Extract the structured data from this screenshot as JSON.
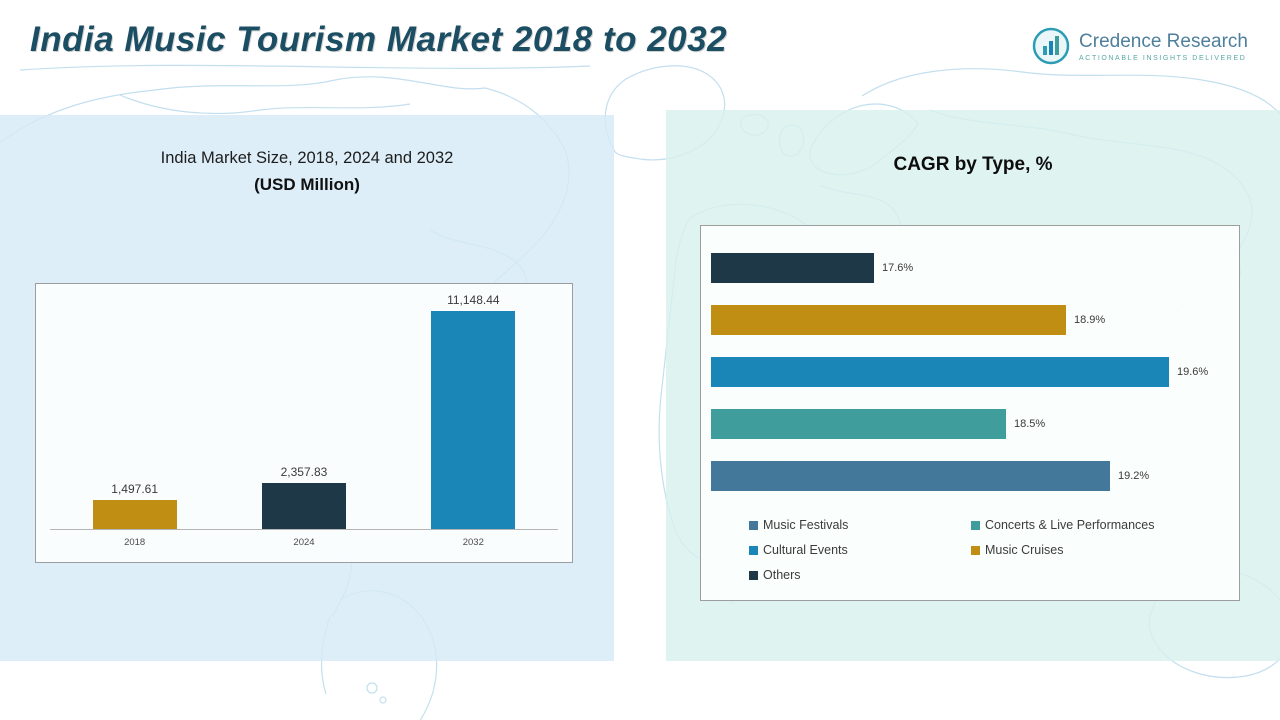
{
  "header": {
    "title": "India Music Tourism Market 2018 to 2032",
    "logo": {
      "name": "Credence Research",
      "tagline": "Actionable Insights Delivered"
    }
  },
  "left_panel": {
    "title_line1": "India Market Size, 2018, 2024 and 2032",
    "title_line2": "(USD Million)"
  },
  "right_panel": {
    "title": "CAGR by Type, %"
  },
  "colors": {
    "gold": "#bf8e12",
    "dark_navy": "#1f3847",
    "blue": "#1a86b8",
    "teal": "#3f9e9c",
    "steel_blue": "#44789b",
    "title_teal": "#1c4e63"
  },
  "chart_data": [
    {
      "type": "bar",
      "title": "India Market Size, 2018, 2024 and 2032 (USD Million)",
      "categories": [
        "2018",
        "2024",
        "2032"
      ],
      "values": [
        1497.61,
        2357.83,
        11148.44
      ],
      "labels": [
        "1,497.61",
        "2,357.83",
        "11,148.44"
      ],
      "colors": [
        "#bf8e12",
        "#1f3847",
        "#1a86b8"
      ],
      "xlabel": "",
      "ylabel": "USD Million",
      "ylim": [
        0,
        11500
      ],
      "grid": false,
      "legend_position": "none"
    },
    {
      "type": "bar-horizontal",
      "title": "CAGR by Type, %",
      "categories": [
        "Others",
        "Music Cruises",
        "Cultural Events",
        "Concerts & Live Performances",
        "Music Festivals"
      ],
      "values": [
        17.6,
        18.9,
        19.6,
        18.5,
        19.2
      ],
      "labels": [
        "17.6%",
        "18.9%",
        "19.6%",
        "18.5%",
        "19.2%"
      ],
      "colors": [
        "#1f3847",
        "#bf8e12",
        "#1a86b8",
        "#3f9e9c",
        "#44789b"
      ],
      "xlabel": "CAGR %",
      "ylabel": "",
      "xlim": [
        16.5,
        19.6
      ],
      "grid": false,
      "legend_position": "bottom",
      "legend": [
        {
          "label": "Music Festivals",
          "color": "#44789b"
        },
        {
          "label": "Concerts & Live Performances",
          "color": "#3f9e9c"
        },
        {
          "label": "Cultural Events",
          "color": "#1a86b8"
        },
        {
          "label": "Music Cruises",
          "color": "#bf8e12"
        },
        {
          "label": "Others",
          "color": "#1f3847"
        }
      ]
    }
  ]
}
